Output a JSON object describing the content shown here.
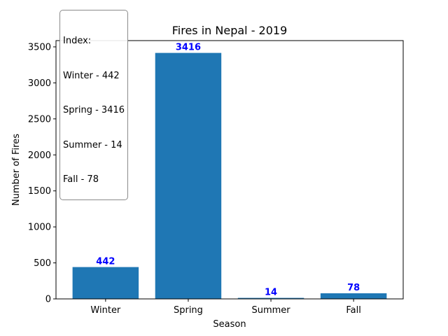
{
  "chart_data": {
    "type": "bar",
    "title": "Fires in Nepal - 2019",
    "xlabel": "Season",
    "ylabel": "Number of Fires",
    "categories": [
      "Winter",
      "Spring",
      "Summer",
      "Fall"
    ],
    "values": [
      442,
      3416,
      14,
      78
    ],
    "data_labels": [
      "442",
      "3416",
      "14",
      "78"
    ],
    "ylim": [
      0,
      3587
    ],
    "yticks": [
      0,
      500,
      1000,
      1500,
      2000,
      2500,
      3000,
      3500
    ],
    "grid": false,
    "bar_color": "#1f77b4",
    "label_color": "#0000ff",
    "annotation": {
      "placement": "top-left",
      "lines": [
        "Index:",
        "Winter - 442",
        "Spring - 3416",
        "Summer - 14",
        "Fall - 78"
      ]
    }
  }
}
